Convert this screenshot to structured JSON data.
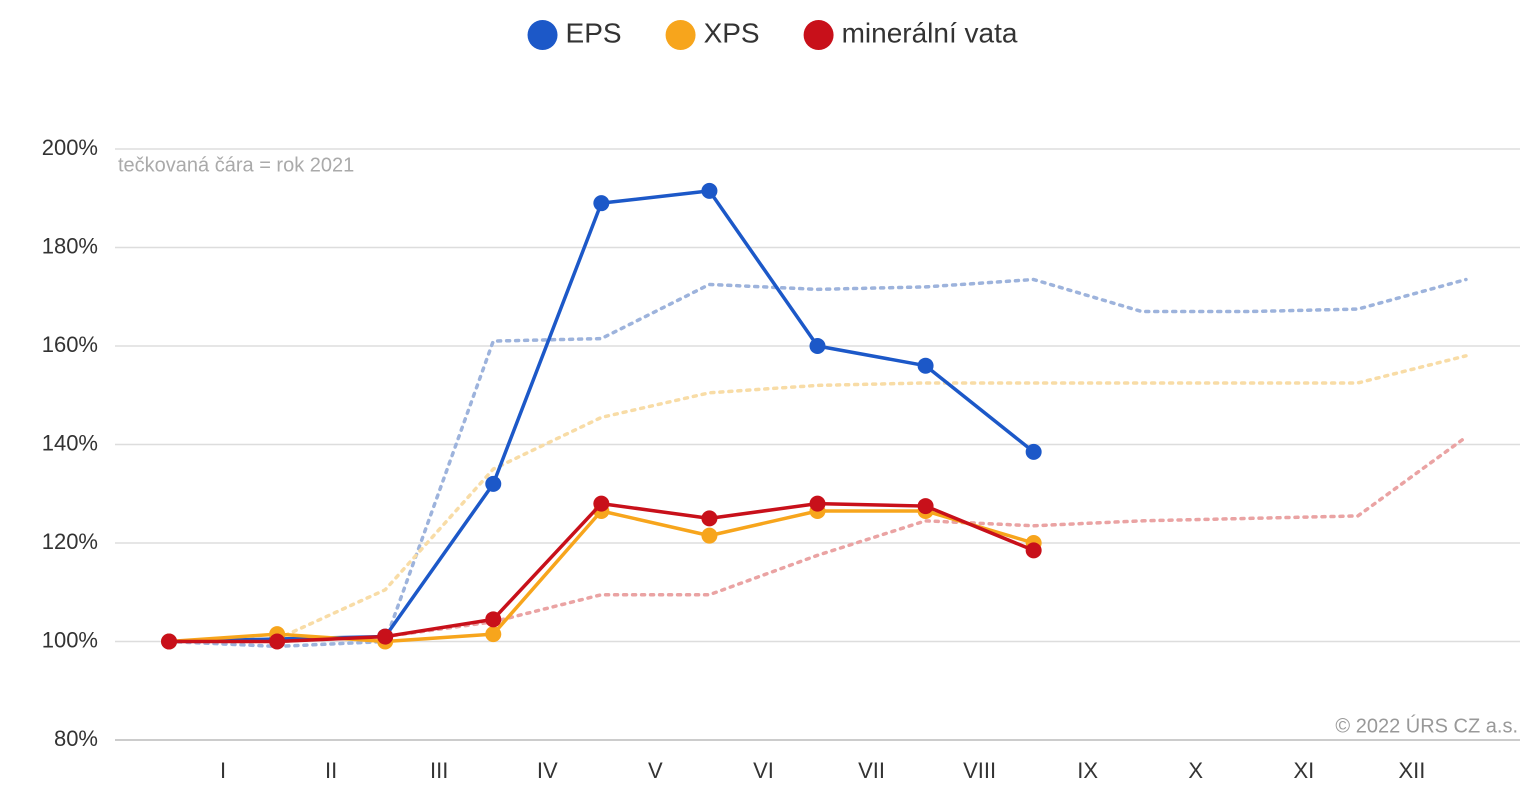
{
  "chart_data": {
    "type": "line",
    "note": "tečkovaná čára = rok 2021",
    "credit": "© 2022 ÚRS CZ a.s.",
    "xlim": [
      -0.5,
      12.5
    ],
    "xticks": [
      {
        "value": 0.5,
        "label": "I"
      },
      {
        "value": 1.5,
        "label": "II"
      },
      {
        "value": 2.5,
        "label": "III"
      },
      {
        "value": 3.5,
        "label": "IV"
      },
      {
        "value": 4.5,
        "label": "V"
      },
      {
        "value": 5.5,
        "label": "VI"
      },
      {
        "value": 6.5,
        "label": "VII"
      },
      {
        "value": 7.5,
        "label": "VIII"
      },
      {
        "value": 8.5,
        "label": "IX"
      },
      {
        "value": 9.5,
        "label": "X"
      },
      {
        "value": 10.5,
        "label": "XI"
      },
      {
        "value": 11.5,
        "label": "XII"
      }
    ],
    "ylim": [
      80,
      200
    ],
    "yticks": [
      {
        "value": 80,
        "label": "80%"
      },
      {
        "value": 100,
        "label": "100%"
      },
      {
        "value": 120,
        "label": "120%"
      },
      {
        "value": 140,
        "label": "140%"
      },
      {
        "value": 160,
        "label": "160%"
      },
      {
        "value": 180,
        "label": "180%"
      },
      {
        "value": 200,
        "label": "200%"
      }
    ],
    "grid": true,
    "legend": "top",
    "series": [
      {
        "color": "#9db3dc",
        "style": "dotted",
        "x": [
          0,
          1,
          2,
          3,
          4,
          5,
          6,
          7,
          8,
          9,
          10,
          11,
          12
        ],
        "values": [
          100,
          99,
          100,
          161,
          161.5,
          172.5,
          171.5,
          172,
          173.5,
          167,
          167,
          167.5,
          173.5
        ]
      },
      {
        "color": "#f8dca6",
        "style": "dotted",
        "x": [
          0,
          1,
          2,
          3,
          4,
          5,
          6,
          7,
          8,
          9,
          10,
          11,
          12
        ],
        "values": [
          100,
          100.5,
          110.5,
          135,
          145.5,
          150.5,
          152,
          152.5,
          152.5,
          152.5,
          152.5,
          152.5,
          158
        ]
      },
      {
        "color": "#eaa3a3",
        "style": "dotted",
        "x": [
          0,
          1,
          2,
          3,
          4,
          5,
          6,
          7,
          8,
          9,
          10,
          11,
          12
        ],
        "values": [
          100,
          100,
          101,
          104,
          109.5,
          109.5,
          117.5,
          124.5,
          123.5,
          124.5,
          125,
          125.5,
          141.5
        ]
      },
      {
        "name": "EPS",
        "color": "#1c58c8",
        "style": "solid",
        "x": [
          0,
          1,
          2,
          3,
          4,
          5,
          6,
          7,
          8
        ],
        "values": [
          100,
          100.5,
          101,
          132,
          189,
          191.5,
          160,
          156,
          138.5
        ]
      },
      {
        "name": "XPS",
        "color": "#f7a51c",
        "style": "solid",
        "x": [
          0,
          1,
          2,
          3,
          4,
          5,
          6,
          7,
          8
        ],
        "values": [
          100,
          101.5,
          100,
          101.5,
          126.5,
          121.5,
          126.5,
          126.5,
          120
        ]
      },
      {
        "name": "minerální vata",
        "color": "#c8101a",
        "style": "solid",
        "x": [
          0,
          1,
          2,
          3,
          4,
          5,
          6,
          7,
          8
        ],
        "values": [
          100,
          100,
          101,
          104.5,
          128,
          125,
          128,
          127.5,
          118.5
        ]
      }
    ]
  }
}
